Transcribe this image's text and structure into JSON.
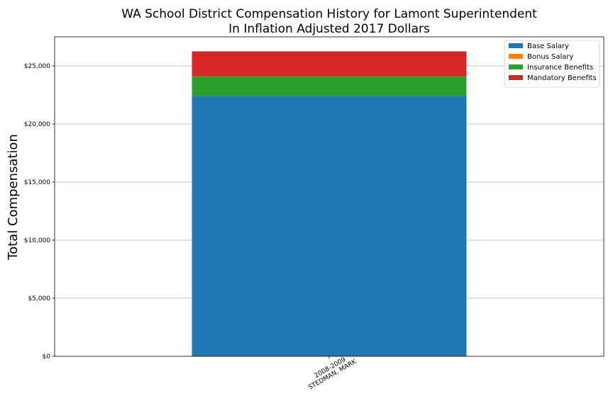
{
  "chart_data": {
    "type": "bar",
    "stacked": true,
    "title": "WA School District Compensation History for Lamont Superintendent",
    "subtitle": "In Inflation Adjusted 2017 Dollars",
    "xlabel": "",
    "ylabel": "Total Compensation",
    "ylim": [
      0,
      27500
    ],
    "yticks": [
      0,
      5000,
      10000,
      15000,
      20000,
      25000
    ],
    "ytick_labels": [
      "$0",
      "$5,000",
      "$10,000",
      "$15,000",
      "$20,000",
      "$25,000"
    ],
    "grid": "horizontal",
    "legend_position": "top-right",
    "categories": [
      {
        "line1": "2008-2009",
        "line2": "STEDMAN, MARK"
      }
    ],
    "series": [
      {
        "name": "Base Salary",
        "color": "#1f77b4",
        "values": [
          22400
        ]
      },
      {
        "name": "Bonus Salary",
        "color": "#ff7f0e",
        "values": [
          0
        ]
      },
      {
        "name": "Insurance Benefits",
        "color": "#2ca02c",
        "values": [
          1700
        ]
      },
      {
        "name": "Mandatory Benefits",
        "color": "#d62728",
        "values": [
          2150
        ]
      }
    ]
  }
}
